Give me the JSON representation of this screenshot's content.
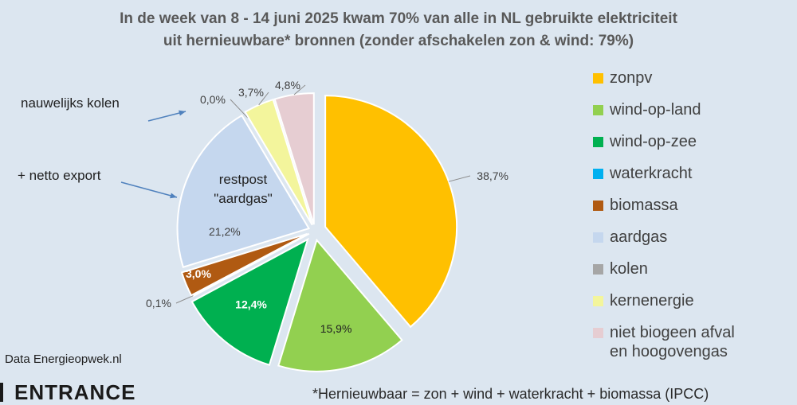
{
  "chart_data": {
    "type": "pie",
    "title_line1": "In de week van 8 - 14 juni 2025 kwam 70% van alle in NL gebruikte elektriciteit",
    "title_line2": "uit hernieuwbare* bronnen  (zonder afschakelen zon & wind: 79%)",
    "slices": [
      {
        "name": "zonpv",
        "value": 38.7,
        "label": "38,7%",
        "color": "#ffc000"
      },
      {
        "name": "wind-op-land",
        "value": 15.9,
        "label": "15,9%",
        "color": "#92d050"
      },
      {
        "name": "wind-op-zee",
        "value": 12.4,
        "label": "12,4%",
        "color": "#00b050"
      },
      {
        "name": "waterkracht",
        "value": 0.1,
        "label": "0,1%",
        "color": "#00b0f0"
      },
      {
        "name": "biomassa",
        "value": 3.0,
        "label": "3,0%",
        "color": "#b05a12"
      },
      {
        "name": "aardgas",
        "value": 21.2,
        "label": "21,2%",
        "color": "#c5d7ee"
      },
      {
        "name": "kolen",
        "value": 0.0,
        "label": "0,0%",
        "color": "#a6a6a6"
      },
      {
        "name": "kernenergie",
        "value": 3.7,
        "label": "3,7%",
        "color": "#f3f59c"
      },
      {
        "name": "niet biogeen afval\nen hoogovengas",
        "value": 4.8,
        "label": "4,8%",
        "color": "#e6cdd2"
      }
    ],
    "center_label": "restpost\n\"aardgas\"",
    "annotations": [
      "nauwelijks kolen",
      "+ netto export"
    ]
  },
  "source": "Data Energieopwek.nl",
  "logo": "ENTRANCE",
  "footnote": "*Hernieuwbaar = zon + wind + waterkracht + biomassa (IPCC)"
}
